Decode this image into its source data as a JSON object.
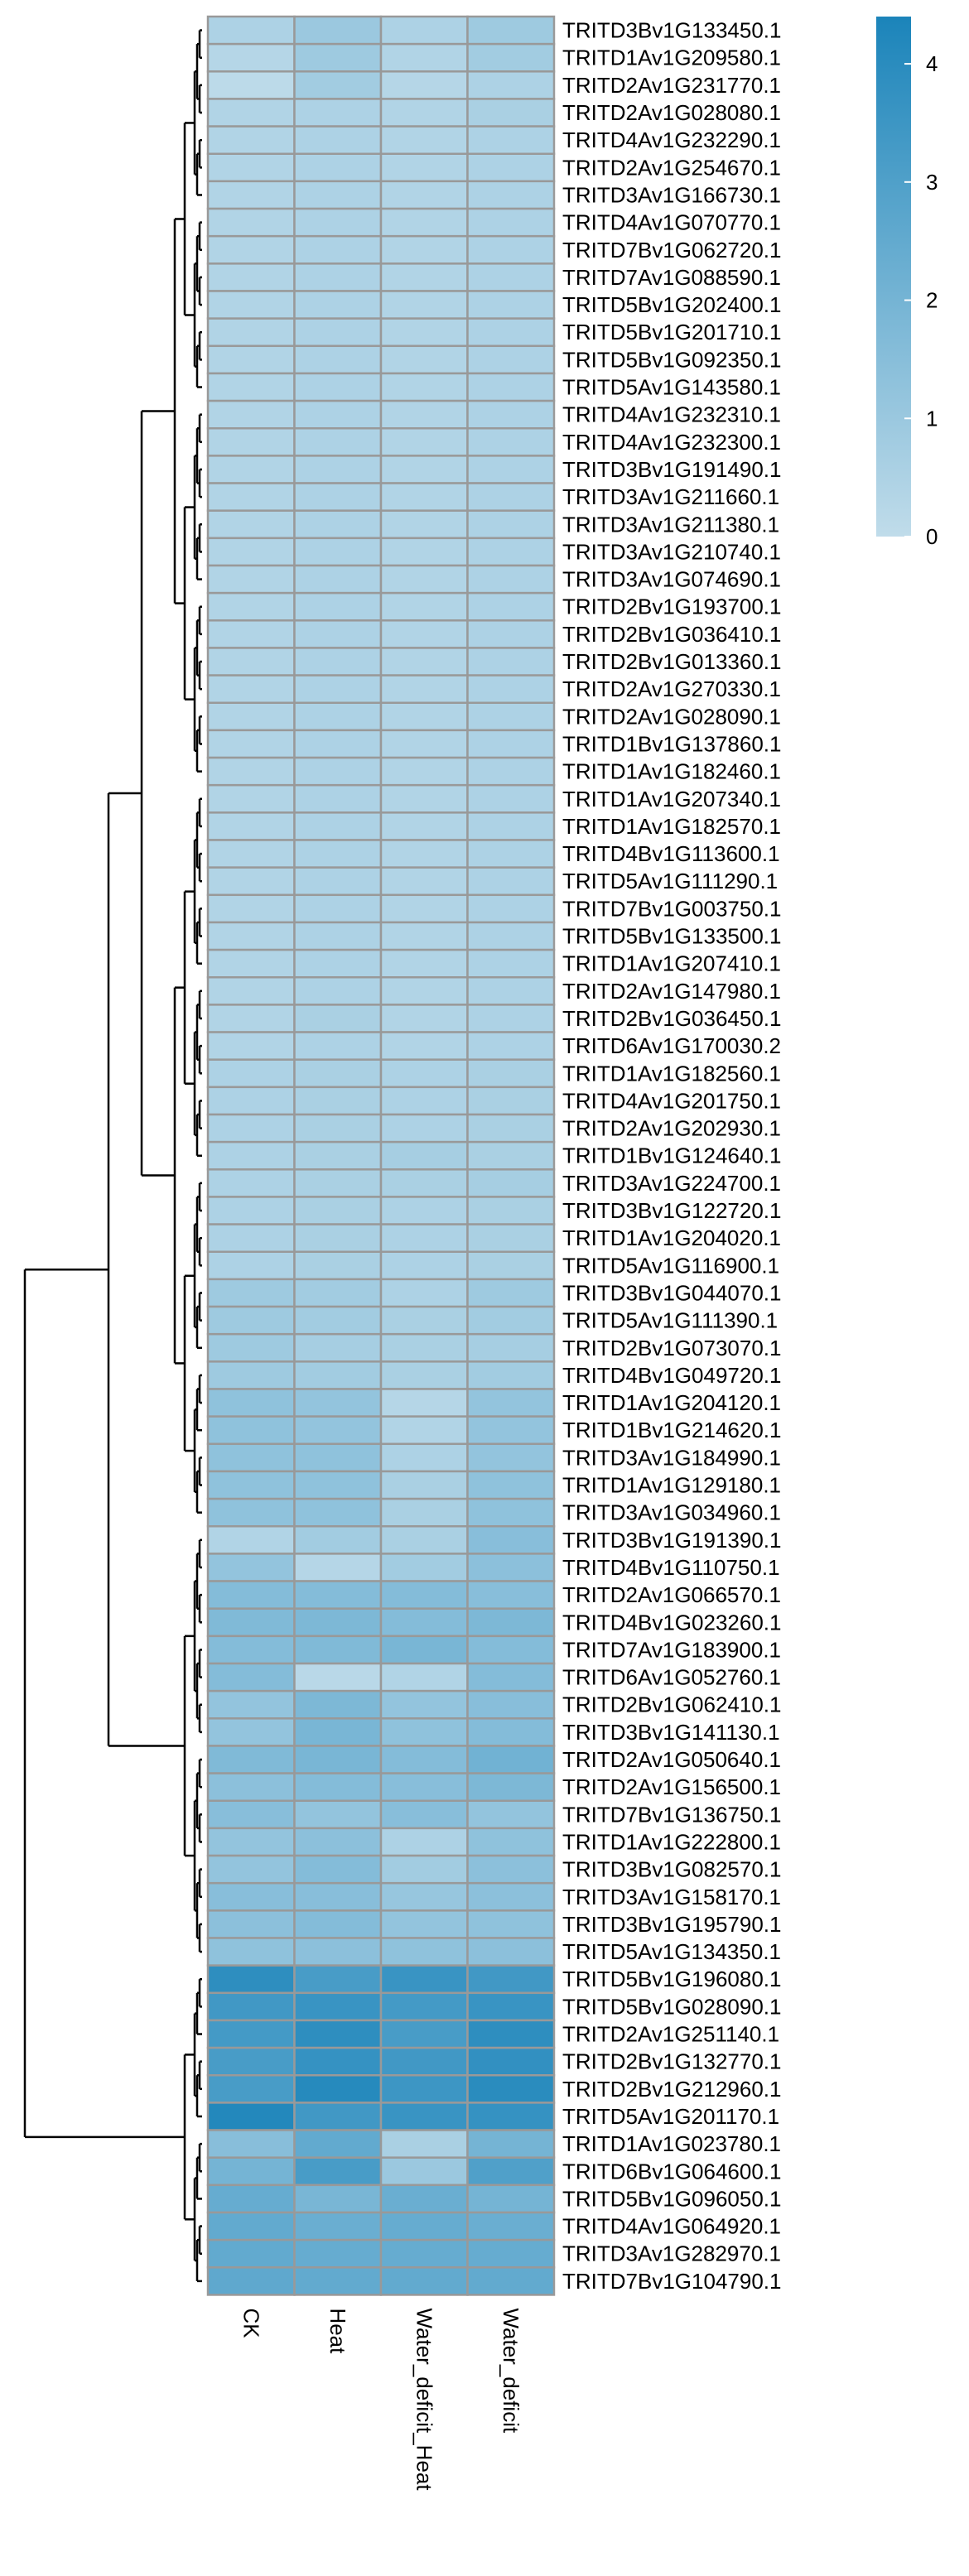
{
  "chart_data": {
    "type": "heatmap",
    "columns": [
      "CK",
      "Heat",
      "Water_deficit_Heat",
      "Water_deficit"
    ],
    "rows": [
      "TRITD3Bv1G133450.1",
      "TRITD1Av1G209580.1",
      "TRITD2Av1G231770.1",
      "TRITD2Av1G028080.1",
      "TRITD4Av1G232290.1",
      "TRITD2Av1G254670.1",
      "TRITD3Av1G166730.1",
      "TRITD4Av1G070770.1",
      "TRITD7Bv1G062720.1",
      "TRITD7Av1G088590.1",
      "TRITD5Bv1G202400.1",
      "TRITD5Bv1G201710.1",
      "TRITD5Bv1G092350.1",
      "TRITD5Av1G143580.1",
      "TRITD4Av1G232310.1",
      "TRITD4Av1G232300.1",
      "TRITD3Bv1G191490.1",
      "TRITD3Av1G211660.1",
      "TRITD3Av1G211380.1",
      "TRITD3Av1G210740.1",
      "TRITD3Av1G074690.1",
      "TRITD2Bv1G193700.1",
      "TRITD2Bv1G036410.1",
      "TRITD2Bv1G013360.1",
      "TRITD2Av1G270330.1",
      "TRITD2Av1G028090.1",
      "TRITD1Bv1G137860.1",
      "TRITD1Av1G182460.1",
      "TRITD1Av1G207340.1",
      "TRITD1Av1G182570.1",
      "TRITD4Bv1G113600.1",
      "TRITD5Av1G111290.1",
      "TRITD7Bv1G003750.1",
      "TRITD5Bv1G133500.1",
      "TRITD1Av1G207410.1",
      "TRITD2Av1G147980.1",
      "TRITD2Bv1G036450.1",
      "TRITD6Av1G170030.2",
      "TRITD1Av1G182560.1",
      "TRITD4Av1G201750.1",
      "TRITD2Av1G202930.1",
      "TRITD1Bv1G124640.1",
      "TRITD3Av1G224700.1",
      "TRITD3Bv1G122720.1",
      "TRITD1Av1G204020.1",
      "TRITD5Av1G116900.1",
      "TRITD3Bv1G044070.1",
      "TRITD5Av1G111390.1",
      "TRITD2Bv1G073070.1",
      "TRITD4Bv1G049720.1",
      "TRITD1Av1G204120.1",
      "TRITD1Bv1G214620.1",
      "TRITD3Av1G184990.1",
      "TRITD1Av1G129180.1",
      "TRITD3Av1G034960.1",
      "TRITD3Bv1G191390.1",
      "TRITD4Bv1G110750.1",
      "TRITD2Av1G066570.1",
      "TRITD4Bv1G023260.1",
      "TRITD7Av1G183900.1",
      "TRITD6Av1G052760.1",
      "TRITD2Bv1G062410.1",
      "TRITD3Bv1G141130.1",
      "TRITD2Av1G050640.1",
      "TRITD2Av1G156500.1",
      "TRITD7Bv1G136750.1",
      "TRITD1Av1G222800.1",
      "TRITD3Bv1G082570.1",
      "TRITD3Av1G158170.1",
      "TRITD3Bv1G195790.1",
      "TRITD5Av1G134350.1",
      "TRITD5Bv1G196080.1",
      "TRITD5Bv1G028090.1",
      "TRITD2Av1G251140.1",
      "TRITD2Bv1G132770.1",
      "TRITD2Bv1G212960.1",
      "TRITD5Av1G201170.1",
      "TRITD1Av1G023780.1",
      "TRITD6Bv1G064600.1",
      "TRITD5Bv1G096050.1",
      "TRITD4Av1G064920.1",
      "TRITD3Av1G282970.1",
      "TRITD7Bv1G104790.1"
    ],
    "values": [
      [
        0.5,
        1.0,
        0.5,
        0.9
      ],
      [
        0.3,
        0.9,
        0.4,
        0.8
      ],
      [
        0.1,
        0.8,
        0.3,
        0.5
      ],
      [
        0.4,
        0.5,
        0.4,
        0.6
      ],
      [
        0.4,
        0.5,
        0.4,
        0.5
      ],
      [
        0.4,
        0.5,
        0.4,
        0.5
      ],
      [
        0.4,
        0.5,
        0.4,
        0.5
      ],
      [
        0.4,
        0.5,
        0.4,
        0.5
      ],
      [
        0.4,
        0.5,
        0.4,
        0.5
      ],
      [
        0.4,
        0.5,
        0.4,
        0.5
      ],
      [
        0.4,
        0.5,
        0.4,
        0.5
      ],
      [
        0.4,
        0.5,
        0.4,
        0.5
      ],
      [
        0.4,
        0.5,
        0.4,
        0.5
      ],
      [
        0.4,
        0.5,
        0.4,
        0.5
      ],
      [
        0.4,
        0.5,
        0.4,
        0.5
      ],
      [
        0.4,
        0.5,
        0.4,
        0.5
      ],
      [
        0.4,
        0.5,
        0.4,
        0.5
      ],
      [
        0.4,
        0.5,
        0.4,
        0.5
      ],
      [
        0.4,
        0.5,
        0.4,
        0.5
      ],
      [
        0.4,
        0.5,
        0.4,
        0.5
      ],
      [
        0.4,
        0.5,
        0.4,
        0.5
      ],
      [
        0.4,
        0.5,
        0.4,
        0.5
      ],
      [
        0.4,
        0.5,
        0.4,
        0.5
      ],
      [
        0.4,
        0.5,
        0.4,
        0.5
      ],
      [
        0.4,
        0.5,
        0.4,
        0.5
      ],
      [
        0.4,
        0.5,
        0.4,
        0.5
      ],
      [
        0.4,
        0.5,
        0.4,
        0.5
      ],
      [
        0.4,
        0.5,
        0.4,
        0.5
      ],
      [
        0.4,
        0.5,
        0.4,
        0.5
      ],
      [
        0.4,
        0.5,
        0.4,
        0.5
      ],
      [
        0.4,
        0.5,
        0.4,
        0.5
      ],
      [
        0.4,
        0.5,
        0.4,
        0.5
      ],
      [
        0.4,
        0.5,
        0.4,
        0.5
      ],
      [
        0.4,
        0.5,
        0.4,
        0.5
      ],
      [
        0.4,
        0.5,
        0.4,
        0.5
      ],
      [
        0.4,
        0.5,
        0.4,
        0.5
      ],
      [
        0.4,
        0.6,
        0.4,
        0.5
      ],
      [
        0.4,
        0.5,
        0.4,
        0.5
      ],
      [
        0.5,
        0.6,
        0.5,
        0.6
      ],
      [
        0.5,
        0.6,
        0.5,
        0.6
      ],
      [
        0.5,
        0.6,
        0.5,
        0.6
      ],
      [
        0.5,
        0.6,
        0.7,
        0.6
      ],
      [
        0.5,
        0.6,
        0.6,
        0.7
      ],
      [
        0.5,
        0.6,
        0.5,
        0.6
      ],
      [
        0.5,
        0.6,
        0.5,
        0.6
      ],
      [
        0.5,
        0.6,
        0.5,
        0.6
      ],
      [
        0.9,
        0.8,
        0.5,
        0.9
      ],
      [
        0.9,
        0.8,
        0.6,
        0.8
      ],
      [
        0.9,
        0.7,
        0.6,
        0.7
      ],
      [
        0.9,
        0.8,
        0.6,
        0.8
      ],
      [
        1.3,
        1.2,
        0.3,
        1.2
      ],
      [
        1.3,
        1.2,
        0.4,
        1.2
      ],
      [
        1.3,
        1.3,
        0.5,
        1.2
      ],
      [
        1.3,
        1.3,
        0.6,
        1.3
      ],
      [
        1.3,
        1.3,
        0.6,
        1.3
      ],
      [
        0.4,
        0.8,
        0.6,
        1.5
      ],
      [
        1.2,
        0.3,
        0.8,
        1.4
      ],
      [
        1.6,
        1.6,
        1.6,
        1.5
      ],
      [
        1.7,
        1.8,
        1.6,
        1.8
      ],
      [
        1.6,
        1.7,
        1.9,
        1.6
      ],
      [
        1.6,
        0.2,
        0.4,
        1.6
      ],
      [
        1.2,
        1.8,
        1.2,
        1.5
      ],
      [
        1.2,
        1.9,
        1.3,
        1.6
      ],
      [
        1.7,
        1.9,
        1.6,
        2.1
      ],
      [
        1.4,
        1.6,
        1.5,
        1.8
      ],
      [
        1.5,
        1.2,
        1.5,
        1.2
      ],
      [
        1.2,
        1.4,
        0.5,
        1.3
      ],
      [
        1.2,
        1.6,
        0.8,
        1.4
      ],
      [
        1.5,
        1.5,
        1.1,
        1.4
      ],
      [
        1.4,
        1.6,
        1.2,
        1.3
      ],
      [
        1.3,
        1.4,
        1.3,
        1.4
      ],
      [
        3.9,
        3.2,
        3.6,
        3.4
      ],
      [
        3.4,
        3.6,
        3.3,
        3.6
      ],
      [
        3.3,
        3.9,
        3.2,
        3.9
      ],
      [
        3.2,
        3.7,
        3.4,
        3.8
      ],
      [
        3.2,
        4.1,
        3.5,
        4.0
      ],
      [
        4.2,
        3.4,
        3.6,
        3.7
      ],
      [
        1.5,
        2.5,
        0.6,
        2.0
      ],
      [
        2.0,
        3.2,
        1.0,
        3.0
      ],
      [
        2.4,
        1.9,
        2.3,
        2.0
      ],
      [
        2.5,
        2.3,
        2.4,
        2.3
      ],
      [
        2.5,
        2.4,
        2.4,
        2.4
      ],
      [
        2.6,
        2.5,
        2.5,
        2.5
      ]
    ],
    "color_scale": {
      "min": 0,
      "max": 4.4,
      "low_color": "#c0dcea",
      "high_color": "#1b84ba"
    },
    "legend": {
      "placement": "top-right",
      "ticks": [
        0,
        1,
        2,
        3,
        4
      ]
    },
    "row_dendrogram": "left",
    "cell_border_color": "#999999"
  }
}
